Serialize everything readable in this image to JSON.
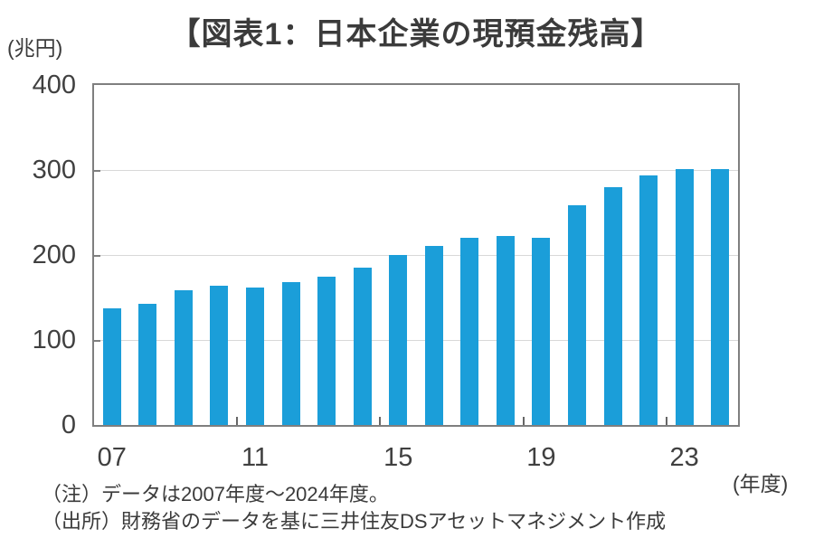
{
  "chart_data": {
    "type": "bar",
    "title": "【図表1：日本企業の現預金残高】",
    "y_unit_label": "(兆円)",
    "x_unit_label": "(年度)",
    "categories": [
      "07",
      "08",
      "09",
      "10",
      "11",
      "12",
      "13",
      "14",
      "15",
      "16",
      "17",
      "18",
      "19",
      "20",
      "21",
      "22",
      "23",
      "24"
    ],
    "values": [
      137,
      143,
      158,
      164,
      162,
      168,
      174,
      185,
      200,
      211,
      220,
      222,
      220,
      259,
      280,
      294,
      301,
      301
    ],
    "ylim": [
      0,
      400
    ],
    "yticks": [
      0,
      100,
      200,
      300,
      400
    ],
    "x_axis_labels": [
      {
        "index": 0,
        "label": "07"
      },
      {
        "index": 4,
        "label": "11"
      },
      {
        "index": 8,
        "label": "15"
      },
      {
        "index": 12,
        "label": "19"
      },
      {
        "index": 16,
        "label": "23"
      }
    ],
    "x_tick_boundaries": [
      4,
      8,
      12,
      16
    ],
    "grid": true,
    "legend": "none",
    "bar_color": "#1b9ed9",
    "frame_color": "#7f7f7f",
    "gridline_color": "#d8d8d8"
  },
  "notes": {
    "note": "（注）データは2007年度～2024年度。",
    "source": "（出所）財務省のデータを基に三井住友DSアセットマネジメント作成"
  }
}
